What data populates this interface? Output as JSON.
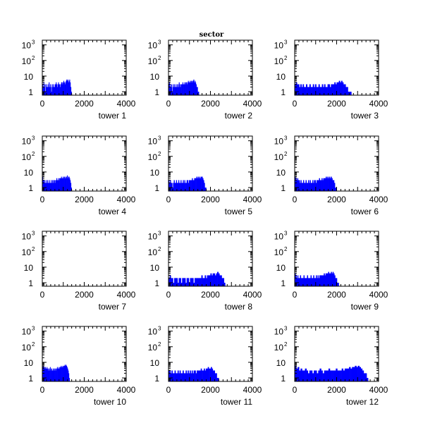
{
  "figure": {
    "title": "sector",
    "hist_color": "#0000ff"
  },
  "chart_data": [
    {
      "type": "bar",
      "xlabel": "tower 1",
      "xlim": [
        0,
        4000
      ],
      "xticks": [
        "0",
        "2000",
        "4000"
      ],
      "yscale": "log",
      "ylim": [
        0.6,
        2000
      ],
      "yticks": [
        {
          "base": "10",
          "exp": "3"
        },
        {
          "base": "10",
          "exp": "2"
        },
        {
          "base": "10",
          "exp": ""
        },
        {
          "base": "1",
          "exp": ""
        }
      ],
      "x_range": [
        0,
        1400
      ],
      "values": [
        3,
        2,
        4,
        2,
        3,
        1,
        3,
        2,
        2,
        3,
        2,
        4,
        2,
        3,
        2,
        1,
        3,
        2,
        3,
        2,
        2,
        3,
        3,
        4,
        3,
        2,
        3,
        4,
        3,
        3,
        2,
        3,
        4,
        4,
        3,
        4,
        5,
        4,
        3,
        4,
        5,
        6,
        5,
        6,
        4,
        5,
        6,
        4,
        2,
        1
      ]
    },
    {
      "type": "bar",
      "xlabel": "tower 2",
      "xlim": [
        0,
        4000
      ],
      "xticks": [
        "0",
        "2000",
        "4000"
      ],
      "yscale": "log",
      "ylim": [
        0.6,
        2000
      ],
      "yticks": [
        {
          "base": "10",
          "exp": "3"
        },
        {
          "base": "10",
          "exp": "2"
        },
        {
          "base": "10",
          "exp": ""
        },
        {
          "base": "1",
          "exp": ""
        }
      ],
      "x_range": [
        0,
        1450
      ],
      "values": [
        3,
        4,
        2,
        3,
        2,
        3,
        1,
        2,
        3,
        2,
        3,
        2,
        2,
        3,
        2,
        3,
        2,
        4,
        3,
        2,
        3,
        3,
        3,
        4,
        3,
        3,
        4,
        3,
        4,
        4,
        3,
        4,
        5,
        4,
        4,
        5,
        4,
        5,
        4,
        5,
        5,
        6,
        4,
        5,
        4,
        3,
        2,
        2,
        1,
        1
      ]
    },
    {
      "type": "bar",
      "xlabel": "tower 3",
      "xlim": [
        0,
        4000
      ],
      "xticks": [
        "0",
        "2000",
        "4000"
      ],
      "yscale": "log",
      "ylim": [
        0.6,
        2000
      ],
      "yticks": [
        {
          "base": "10",
          "exp": "3"
        },
        {
          "base": "10",
          "exp": "2"
        },
        {
          "base": "10",
          "exp": ""
        },
        {
          "base": "1",
          "exp": ""
        }
      ],
      "x_range": [
        0,
        2700
      ],
      "values": [
        3,
        4,
        3,
        3,
        2,
        3,
        2,
        3,
        2,
        2,
        3,
        2,
        2,
        3,
        2,
        2,
        3,
        2,
        3,
        2,
        2,
        3,
        2,
        2,
        3,
        2,
        3,
        2,
        2,
        3,
        3,
        2,
        3,
        3,
        3,
        4,
        3,
        4,
        4,
        5,
        4,
        5,
        4,
        3,
        3,
        2,
        2,
        1,
        1,
        1
      ]
    },
    {
      "type": "bar",
      "xlabel": "tower 4",
      "xlim": [
        0,
        4000
      ],
      "xticks": [
        "0",
        "2000",
        "4000"
      ],
      "yscale": "log",
      "ylim": [
        0.6,
        2000
      ],
      "yticks": [
        {
          "base": "10",
          "exp": "3"
        },
        {
          "base": "10",
          "exp": "2"
        },
        {
          "base": "10",
          "exp": ""
        },
        {
          "base": "1",
          "exp": ""
        }
      ],
      "x_range": [
        0,
        1400
      ],
      "values": [
        5,
        3,
        3,
        2,
        3,
        2,
        2,
        3,
        2,
        3,
        2,
        2,
        3,
        2,
        2,
        3,
        2,
        3,
        2,
        3,
        3,
        2,
        3,
        3,
        4,
        3,
        3,
        4,
        3,
        4,
        4,
        4,
        5,
        4,
        4,
        5,
        4,
        5,
        4,
        5,
        4,
        5,
        6,
        4,
        5,
        5,
        4,
        3,
        2,
        1
      ]
    },
    {
      "type": "bar",
      "xlabel": "tower 5",
      "xlim": [
        0,
        4000
      ],
      "xticks": [
        "0",
        "2000",
        "4000"
      ],
      "yscale": "log",
      "ylim": [
        0.6,
        2000
      ],
      "yticks": [
        {
          "base": "10",
          "exp": "3"
        },
        {
          "base": "10",
          "exp": "2"
        },
        {
          "base": "10",
          "exp": ""
        },
        {
          "base": "1",
          "exp": ""
        }
      ],
      "x_range": [
        0,
        1800
      ],
      "values": [
        3,
        2,
        3,
        2,
        2,
        1,
        2,
        3,
        2,
        2,
        3,
        2,
        2,
        3,
        2,
        2,
        3,
        2,
        2,
        3,
        2,
        3,
        2,
        2,
        3,
        3,
        2,
        3,
        3,
        3,
        3,
        4,
        3,
        3,
        4,
        4,
        4,
        5,
        4,
        5,
        4,
        5,
        4,
        5,
        5,
        4,
        3,
        2,
        1,
        1
      ]
    },
    {
      "type": "bar",
      "xlabel": "tower 6",
      "xlim": [
        0,
        4000
      ],
      "xticks": [
        "0",
        "2000",
        "4000"
      ],
      "yscale": "log",
      "ylim": [
        0.6,
        2000
      ],
      "yticks": [
        {
          "base": "10",
          "exp": "3"
        },
        {
          "base": "10",
          "exp": "2"
        },
        {
          "base": "10",
          "exp": ""
        },
        {
          "base": "1",
          "exp": ""
        }
      ],
      "x_range": [
        0,
        2000
      ],
      "values": [
        5,
        4,
        3,
        4,
        3,
        3,
        2,
        3,
        2,
        2,
        3,
        2,
        2,
        3,
        2,
        2,
        3,
        2,
        3,
        2,
        2,
        3,
        2,
        3,
        3,
        2,
        3,
        3,
        3,
        4,
        3,
        3,
        4,
        3,
        4,
        4,
        4,
        5,
        4,
        5,
        4,
        5,
        4,
        5,
        4,
        3,
        3,
        2,
        1,
        1
      ]
    },
    {
      "type": "bar",
      "xlabel": "tower 7",
      "xlim": [
        0,
        4000
      ],
      "xticks": [
        "0",
        "2000",
        "4000"
      ],
      "yscale": "log",
      "ylim": [
        0.6,
        2000
      ],
      "yticks": [
        {
          "base": "10",
          "exp": "3"
        },
        {
          "base": "10",
          "exp": "2"
        },
        {
          "base": "10",
          "exp": ""
        },
        {
          "base": "1",
          "exp": ""
        }
      ],
      "x_range": [
        0,
        4000
      ],
      "values": []
    },
    {
      "type": "bar",
      "xlabel": "tower 8",
      "xlim": [
        0,
        4000
      ],
      "xticks": [
        "0",
        "2000",
        "4000"
      ],
      "yscale": "log",
      "ylim": [
        0.6,
        2000
      ],
      "yticks": [
        {
          "base": "10",
          "exp": "3"
        },
        {
          "base": "10",
          "exp": "2"
        },
        {
          "base": "10",
          "exp": ""
        },
        {
          "base": "1",
          "exp": ""
        }
      ],
      "x_range": [
        0,
        2700
      ],
      "values": [
        2,
        3,
        2,
        2,
        1,
        2,
        2,
        2,
        1,
        2,
        2,
        1,
        2,
        2,
        2,
        1,
        2,
        2,
        1,
        2,
        2,
        2,
        1,
        2,
        2,
        2,
        2,
        2,
        2,
        3,
        2,
        2,
        3,
        2,
        3,
        3,
        3,
        4,
        3,
        4,
        4,
        3,
        4,
        5,
        4,
        3,
        3,
        2,
        2,
        1
      ]
    },
    {
      "type": "bar",
      "xlabel": "tower 9",
      "xlim": [
        0,
        4000
      ],
      "xticks": [
        "0",
        "2000",
        "4000"
      ],
      "yscale": "log",
      "ylim": [
        0.6,
        2000
      ],
      "yticks": [
        {
          "base": "10",
          "exp": "3"
        },
        {
          "base": "10",
          "exp": "2"
        },
        {
          "base": "10",
          "exp": ""
        },
        {
          "base": "1",
          "exp": ""
        }
      ],
      "x_range": [
        0,
        2100
      ],
      "values": [
        4,
        3,
        2,
        3,
        2,
        2,
        3,
        2,
        2,
        2,
        3,
        2,
        2,
        2,
        3,
        2,
        2,
        2,
        3,
        2,
        2,
        3,
        2,
        2,
        3,
        2,
        3,
        2,
        3,
        3,
        3,
        3,
        3,
        4,
        3,
        4,
        4,
        4,
        5,
        4,
        4,
        5,
        4,
        5,
        4,
        3,
        2,
        2,
        1,
        1
      ]
    },
    {
      "type": "bar",
      "xlabel": "tower 10",
      "xlim": [
        0,
        4000
      ],
      "xticks": [
        "0",
        "2000",
        "4000"
      ],
      "yscale": "log",
      "ylim": [
        0.6,
        2000
      ],
      "yticks": [
        {
          "base": "10",
          "exp": "3"
        },
        {
          "base": "10",
          "exp": "2"
        },
        {
          "base": "10",
          "exp": ""
        },
        {
          "base": "1",
          "exp": ""
        }
      ],
      "x_range": [
        0,
        1300
      ],
      "values": [
        5,
        6,
        5,
        5,
        4,
        5,
        4,
        4,
        5,
        4,
        3,
        4,
        4,
        3,
        5,
        4,
        3,
        4,
        3,
        3,
        4,
        4,
        3,
        4,
        3,
        4,
        4,
        5,
        4,
        4,
        5,
        4,
        5,
        5,
        6,
        5,
        5,
        6,
        5,
        6,
        6,
        7,
        6,
        7,
        6,
        5,
        4,
        3,
        2,
        1
      ]
    },
    {
      "type": "bar",
      "xlabel": "tower 11",
      "xlim": [
        0,
        4000
      ],
      "xticks": [
        "0",
        "2000",
        "4000"
      ],
      "yscale": "log",
      "ylim": [
        0.6,
        2000
      ],
      "yticks": [
        {
          "base": "10",
          "exp": "3"
        },
        {
          "base": "10",
          "exp": "2"
        },
        {
          "base": "10",
          "exp": ""
        },
        {
          "base": "1",
          "exp": ""
        }
      ],
      "x_range": [
        0,
        2400
      ],
      "values": [
        3,
        3,
        2,
        3,
        2,
        2,
        3,
        2,
        2,
        3,
        2,
        3,
        2,
        2,
        3,
        2,
        2,
        3,
        2,
        3,
        2,
        3,
        2,
        3,
        2,
        3,
        3,
        2,
        3,
        3,
        3,
        3,
        4,
        3,
        3,
        4,
        3,
        4,
        4,
        5,
        4,
        4,
        5,
        4,
        3,
        3,
        2,
        2,
        1,
        1
      ]
    },
    {
      "type": "bar",
      "xlabel": "tower 12",
      "xlim": [
        0,
        4000
      ],
      "xticks": [
        "0",
        "2000",
        "4000"
      ],
      "yscale": "log",
      "ylim": [
        0.6,
        2000
      ],
      "yticks": [
        {
          "base": "10",
          "exp": "3"
        },
        {
          "base": "10",
          "exp": "2"
        },
        {
          "base": "10",
          "exp": ""
        },
        {
          "base": "1",
          "exp": ""
        }
      ],
      "x_range": [
        0,
        3500
      ],
      "values": [
        6,
        4,
        5,
        3,
        4,
        3,
        3,
        4,
        3,
        2,
        3,
        3,
        2,
        3,
        3,
        2,
        3,
        4,
        3,
        2,
        3,
        3,
        3,
        4,
        3,
        3,
        3,
        3,
        4,
        3,
        3,
        3,
        4,
        3,
        4,
        4,
        4,
        5,
        4,
        5,
        5,
        6,
        5,
        6,
        5,
        4,
        3,
        2,
        2,
        1
      ]
    }
  ]
}
